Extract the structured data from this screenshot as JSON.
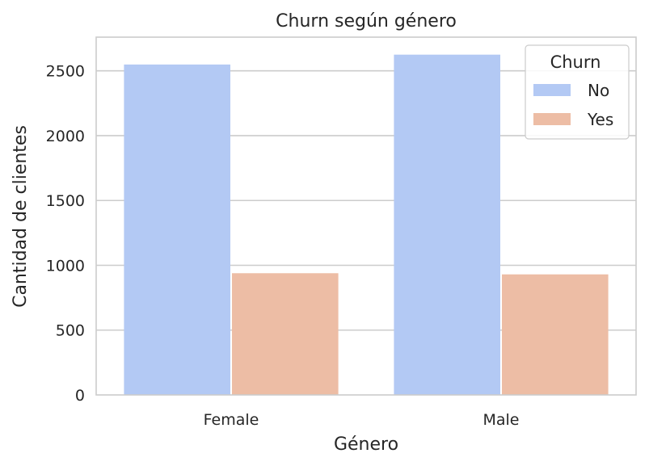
{
  "chart_data": {
    "type": "bar",
    "title": "Churn según género",
    "xlabel": "Género",
    "ylabel": "Cantidad de clientes",
    "categories": [
      "Female",
      "Male"
    ],
    "series": [
      {
        "name": "No",
        "values": [
          2549,
          2625
        ],
        "color": "#b3c9f4"
      },
      {
        "name": "Yes",
        "values": [
          939,
          930
        ],
        "color": "#edbda5"
      }
    ],
    "ylim": [
      0,
      2760
    ],
    "yticks": [
      0,
      500,
      1000,
      1500,
      2000,
      2500
    ],
    "grid": "horizontal",
    "legend": {
      "title": "Churn",
      "placement": "top-right"
    }
  }
}
